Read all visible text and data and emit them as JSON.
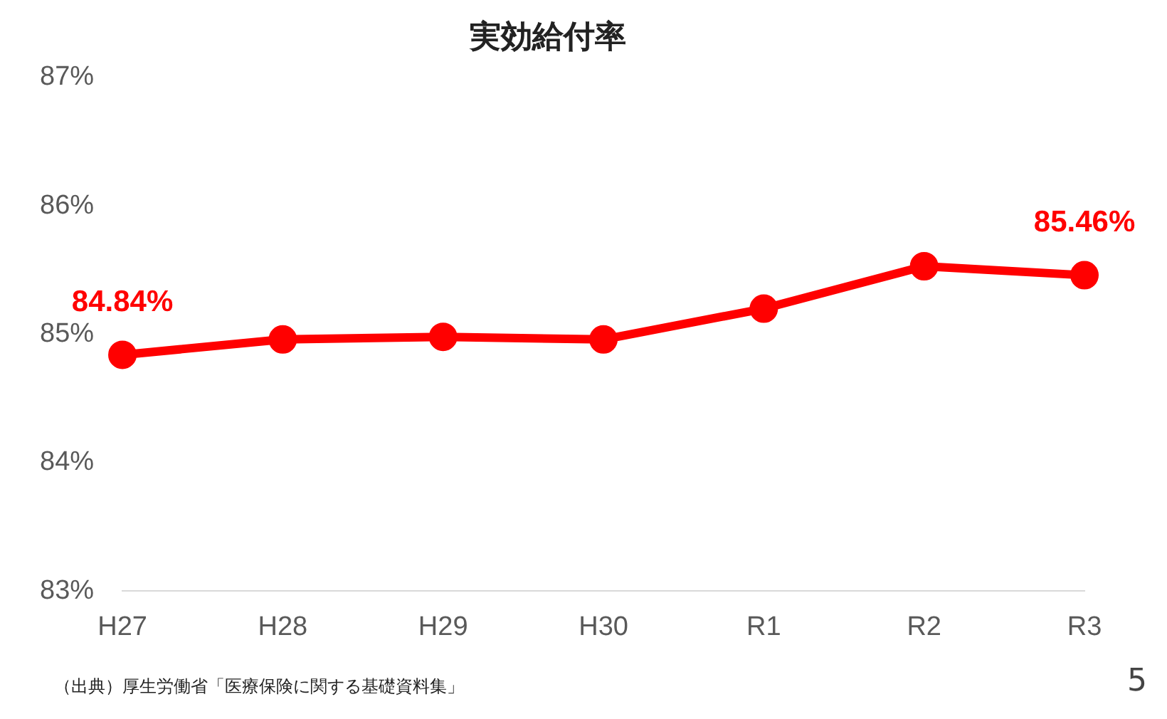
{
  "chart_data": {
    "type": "line",
    "title": "実効給付率",
    "categories": [
      "H27",
      "H28",
      "H29",
      "H30",
      "R1",
      "R2",
      "R3"
    ],
    "series": [
      {
        "color": "#ff0000",
        "values": [
          84.84,
          84.96,
          84.98,
          84.96,
          85.2,
          85.53,
          85.46
        ],
        "value_labels": [
          "84.84%",
          null,
          null,
          null,
          null,
          null,
          "85.46%"
        ]
      }
    ],
    "ylim": [
      83,
      87
    ],
    "yticks": [
      {
        "value": 83,
        "label": "83%"
      },
      {
        "value": 84,
        "label": "84%"
      },
      {
        "value": 85,
        "label": "85%"
      },
      {
        "value": 86,
        "label": "86%"
      },
      {
        "value": 87,
        "label": "87%"
      }
    ],
    "grid": false,
    "legend": false,
    "marker": "circle",
    "line_style": "solid",
    "annotations": [
      "（出典）厚生労働省「医療保険に関する基礎資料集」",
      "5"
    ]
  }
}
